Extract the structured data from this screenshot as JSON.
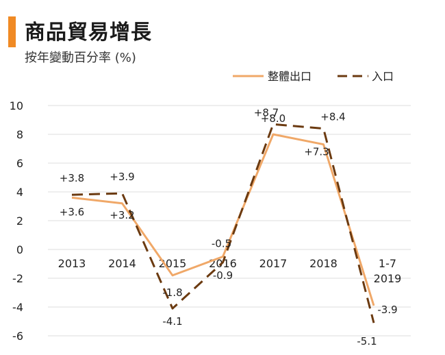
{
  "header": {
    "title": "商品貿易增長",
    "subtitle": "按年變動百分率 (%)"
  },
  "colors": {
    "accent": "#f08a24",
    "export_line": "#f0a868",
    "import_line": "#6b3a10",
    "grid": "#dddddd"
  },
  "chart_data": {
    "type": "line",
    "title": "商品貿易增長",
    "subtitle": "按年變動百分率 (%)",
    "categories": [
      "2013",
      "2014",
      "2015",
      "2016",
      "2017",
      "2018",
      "1-7\n2019"
    ],
    "ylim": [
      -6,
      10
    ],
    "yticks": [
      -6,
      -4,
      -2,
      0,
      2,
      4,
      6,
      8,
      10
    ],
    "grid": true,
    "legend_position": "top-right",
    "series": [
      {
        "name": "整體出口",
        "style": "solid",
        "values": [
          3.6,
          3.2,
          -1.8,
          -0.5,
          8.0,
          7.3,
          -3.9
        ],
        "labels": [
          "+3.6",
          "+3.2",
          "-1.8",
          "-0.5",
          "+8.0",
          "+7.3",
          "-3.9"
        ]
      },
      {
        "name": "入口",
        "style": "dashed",
        "values": [
          3.8,
          3.9,
          -4.1,
          -0.9,
          8.7,
          8.4,
          -5.1
        ],
        "labels": [
          "+3.8",
          "+3.9",
          "-4.1",
          "-0.9",
          "+8.7",
          "+8.4",
          "-5.1"
        ]
      }
    ]
  }
}
